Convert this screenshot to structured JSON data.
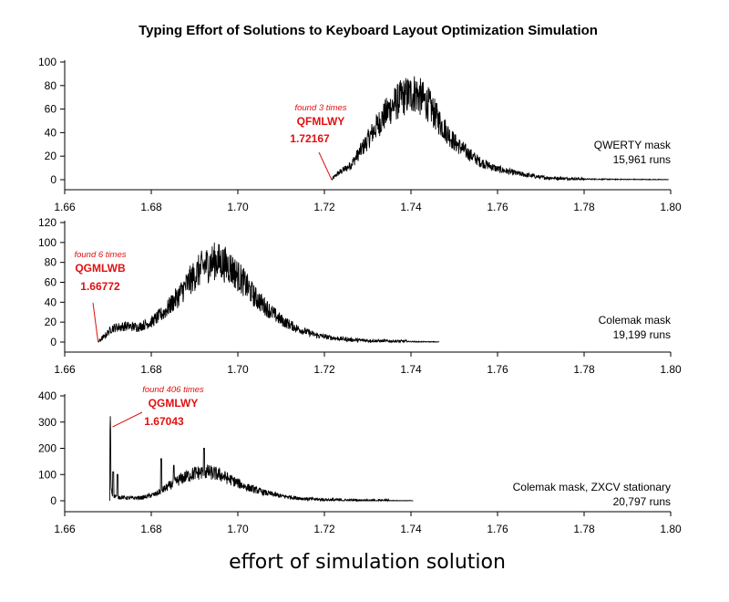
{
  "chart_data": {
    "type": "line",
    "title": "Typing Effort of Solutions to Keyboard Layout Optimization Simulation",
    "xlabel": "effort of simulation solution",
    "xlim": [
      1.66,
      1.8
    ],
    "x_ticks": [
      "1.66",
      "1.68",
      "1.70",
      "1.72",
      "1.74",
      "1.76",
      "1.78",
      "1.80"
    ],
    "panels": [
      {
        "name": "QWERTY mask",
        "note_line1": "QWERTY mask",
        "note_line2": "15,961 runs",
        "ylim": [
          0,
          100
        ],
        "y_ticks": [
          "0",
          "20",
          "40",
          "60",
          "80",
          "100"
        ],
        "annotation": {
          "found": "found 3 times",
          "layout": "QFMLWY",
          "value": "1.72167",
          "x": 1.72167
        },
        "x": [
          1.7217,
          1.723,
          1.726,
          1.729,
          1.732,
          1.735,
          1.738,
          1.741,
          1.744,
          1.747,
          1.75,
          1.753,
          1.756,
          1.76,
          1.765,
          1.77,
          1.775,
          1.78,
          1.79,
          1.7995
        ],
        "y": [
          0,
          5,
          12,
          28,
          45,
          60,
          70,
          74,
          64,
          47,
          32,
          23,
          15,
          9,
          5,
          2,
          1,
          0.5,
          0.2,
          0
        ]
      },
      {
        "name": "Colemak mask",
        "note_line1": "Colemak mask",
        "note_line2": "19,199 runs",
        "ylim": [
          0,
          120
        ],
        "y_ticks": [
          "0",
          "20",
          "40",
          "60",
          "80",
          "100",
          "120"
        ],
        "annotation": {
          "found": "found 6 times",
          "layout": "QGMLWB",
          "value": "1.66772",
          "x": 1.66772
        },
        "x": [
          1.6677,
          1.669,
          1.671,
          1.674,
          1.677,
          1.68,
          1.683,
          1.686,
          1.689,
          1.692,
          1.695,
          1.698,
          1.701,
          1.704,
          1.707,
          1.71,
          1.714,
          1.718,
          1.722,
          1.727,
          1.733,
          1.739,
          1.7465
        ],
        "y": [
          0,
          5,
          14,
          16,
          15,
          20,
          30,
          45,
          62,
          76,
          82,
          76,
          62,
          45,
          33,
          22,
          13,
          7,
          4,
          2,
          1,
          0.5,
          0
        ]
      },
      {
        "name": "Colemak mask, ZXCV stationary",
        "note_line1": "Colemak mask, ZXCV stationary",
        "note_line2": "20,797 runs",
        "ylim": [
          0,
          400
        ],
        "y_ticks": [
          "0",
          "100",
          "200",
          "300",
          "400"
        ],
        "annotation": {
          "found": "found 406 times",
          "layout": "QGMLWY",
          "value": "1.67043",
          "x": 1.67043
        },
        "x": [
          1.6704,
          1.6705,
          1.6707,
          1.671,
          1.672,
          1.675,
          1.678,
          1.681,
          1.684,
          1.687,
          1.69,
          1.693,
          1.696,
          1.699,
          1.702,
          1.706,
          1.71,
          1.715,
          1.72,
          1.725,
          1.73,
          1.735,
          1.7405
        ],
        "y": [
          0,
          406,
          60,
          20,
          15,
          10,
          12,
          25,
          55,
          85,
          105,
          110,
          98,
          75,
          52,
          32,
          18,
          8,
          4,
          2,
          1,
          0.5,
          0
        ],
        "spikes": [
          {
            "x": 1.6712,
            "y": 110
          },
          {
            "x": 1.6722,
            "y": 100
          },
          {
            "x": 1.6823,
            "y": 160
          },
          {
            "x": 1.6852,
            "y": 135
          },
          {
            "x": 1.6922,
            "y": 200
          }
        ]
      }
    ]
  }
}
